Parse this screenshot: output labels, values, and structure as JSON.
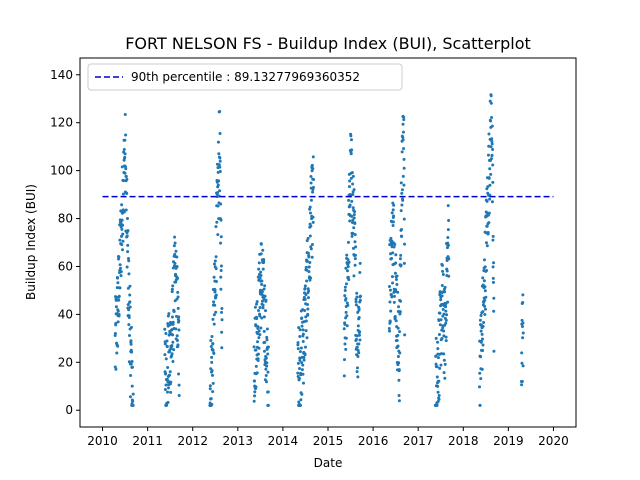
{
  "chart_data": {
    "type": "scatter",
    "title": "FORT NELSON FS - Buildup Index (BUI), Scatterplot",
    "xlabel": "Date",
    "ylabel": "Buildup Index (BUI)",
    "xlim": [
      2009.5,
      2020.5
    ],
    "ylim": [
      -7,
      147
    ],
    "xticks": [
      2010,
      2011,
      2012,
      2013,
      2014,
      2015,
      2016,
      2017,
      2018,
      2019,
      2020
    ],
    "yticks": [
      0,
      20,
      40,
      60,
      80,
      100,
      120,
      140
    ],
    "grid": false,
    "legend_position": "top-left",
    "reference_line": {
      "label": "90th percentile : 89.13277969360352",
      "value": 89.13277969360352,
      "x_range": [
        2010,
        2020
      ],
      "style": "dashed",
      "color": "#0000cc"
    },
    "series": [
      {
        "color": "#1f77b4",
        "seasons": [
          {
            "year": 2010,
            "start": 2010.28,
            "end": 2010.68,
            "profile": [
              [
                0,
                25
              ],
              [
                0.2,
                50
              ],
              [
                0.4,
                85
              ],
              [
                0.55,
                108
              ],
              [
                0.7,
                60
              ],
              [
                0.85,
                25
              ],
              [
                1,
                5
              ]
            ]
          },
          {
            "year": 2011,
            "start": 2011.38,
            "end": 2011.7,
            "profile": [
              [
                0,
                15
              ],
              [
                0.25,
                20
              ],
              [
                0.5,
                30
              ],
              [
                0.7,
                55
              ],
              [
                0.85,
                45
              ],
              [
                1,
                20
              ]
            ]
          },
          {
            "year": 2012,
            "start": 2012.38,
            "end": 2012.65,
            "profile": [
              [
                0,
                8
              ],
              [
                0.2,
                20
              ],
              [
                0.4,
                45
              ],
              [
                0.6,
                80
              ],
              [
                0.8,
                110
              ],
              [
                1,
                35
              ]
            ]
          },
          {
            "year": 2013,
            "start": 2013.36,
            "end": 2013.68,
            "profile": [
              [
                0,
                20
              ],
              [
                0.3,
                40
              ],
              [
                0.5,
                55
              ],
              [
                0.7,
                42
              ],
              [
                0.85,
                25
              ],
              [
                1,
                8
              ]
            ]
          },
          {
            "year": 2014,
            "start": 2014.33,
            "end": 2014.68,
            "profile": [
              [
                0,
                15
              ],
              [
                0.3,
                25
              ],
              [
                0.5,
                42
              ],
              [
                0.7,
                60
              ],
              [
                0.85,
                80
              ],
              [
                1,
                88
              ]
            ]
          },
          {
            "year": 2015,
            "start": 2015.36,
            "end": 2015.72,
            "profile": [
              [
                0,
                25
              ],
              [
                0.2,
                55
              ],
              [
                0.4,
                100
              ],
              [
                0.6,
                75
              ],
              [
                0.8,
                30
              ],
              [
                1,
                45
              ]
            ]
          },
          {
            "year": 2016,
            "start": 2016.36,
            "end": 2016.7,
            "profile": [
              [
                0,
                50
              ],
              [
                0.25,
                75
              ],
              [
                0.5,
                40
              ],
              [
                0.65,
                18
              ],
              [
                0.8,
                90
              ],
              [
                0.95,
                115
              ],
              [
                1,
                40
              ]
            ]
          },
          {
            "year": 2017,
            "start": 2017.38,
            "end": 2017.68,
            "profile": [
              [
                0,
                10
              ],
              [
                0.3,
                25
              ],
              [
                0.5,
                45
              ],
              [
                0.7,
                30
              ],
              [
                0.85,
                55
              ],
              [
                1,
                75
              ]
            ]
          },
          {
            "year": 2018,
            "start": 2018.36,
            "end": 2018.68,
            "profile": [
              [
                0,
                15
              ],
              [
                0.3,
                45
              ],
              [
                0.5,
                75
              ],
              [
                0.7,
                105
              ],
              [
                0.85,
                125
              ],
              [
                1,
                30
              ]
            ]
          },
          {
            "year": 2019,
            "start": 2019.29,
            "end": 2019.33,
            "profile": [
              [
                0,
                25
              ],
              [
                0.5,
                30
              ],
              [
                1,
                36
              ]
            ]
          }
        ]
      }
    ]
  }
}
